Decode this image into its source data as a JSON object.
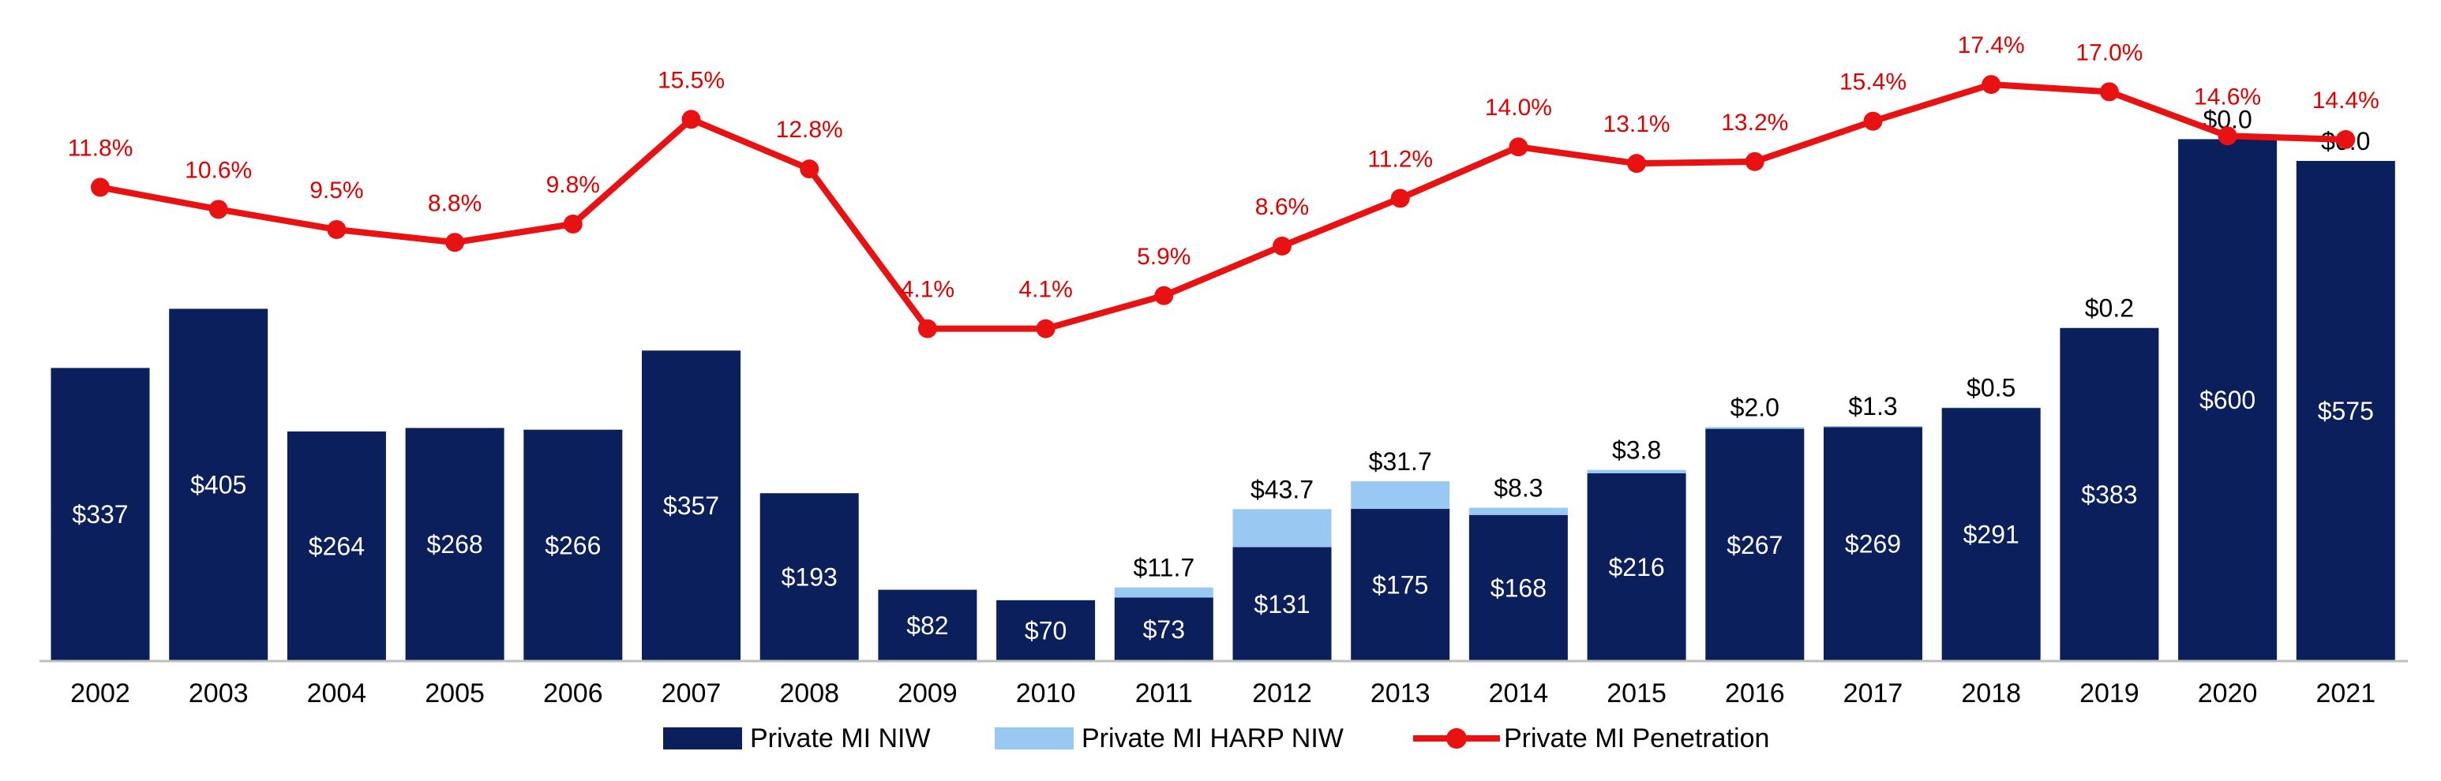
{
  "chart_data": {
    "type": "bar",
    "categories": [
      "2002",
      "2003",
      "2004",
      "2005",
      "2006",
      "2007",
      "2008",
      "2009",
      "2010",
      "2011",
      "2012",
      "2013",
      "2014",
      "2015",
      "2016",
      "2017",
      "2018",
      "2019",
      "2020",
      "2021"
    ],
    "series": [
      {
        "name": "Private MI NIW",
        "values": [
          337,
          405,
          264,
          268,
          266,
          357,
          193,
          82,
          70,
          73,
          131,
          175,
          168,
          216,
          267,
          269,
          291,
          383,
          600,
          575
        ],
        "labels": [
          "$337",
          "$405",
          "$264",
          "$268",
          "$266",
          "$357",
          "$193",
          "$82",
          "$70",
          "$73",
          "$131",
          "$175",
          "$168",
          "$216",
          "$267",
          "$269",
          "$291",
          "$383",
          "$600",
          "$575"
        ]
      },
      {
        "name": "Private MI HARP NIW",
        "values": [
          0,
          0,
          0,
          0,
          0,
          0,
          0,
          0,
          0,
          11.7,
          43.7,
          31.7,
          8.3,
          3.8,
          2.0,
          1.3,
          0.5,
          0.2,
          0.0,
          0.0
        ],
        "labels": [
          "",
          "",
          "",
          "",
          "",
          "",
          "",
          "",
          "",
          "$11.7",
          "$43.7",
          "$31.7",
          "$8.3",
          "$3.8",
          "$2.0",
          "$1.3",
          "$0.5",
          "$0.2",
          "$0.0",
          "$0.0"
        ]
      },
      {
        "name": "Private MI Penetration",
        "values": [
          11.8,
          10.6,
          9.5,
          8.8,
          9.8,
          15.5,
          12.8,
          4.1,
          4.1,
          5.9,
          8.6,
          11.2,
          14.0,
          13.1,
          13.2,
          15.4,
          17.4,
          17.0,
          14.6,
          14.4
        ],
        "labels": [
          "11.8%",
          "10.6%",
          "9.5%",
          "8.8%",
          "9.8%",
          "15.5%",
          "12.8%",
          "4.1%",
          "4.1%",
          "5.9%",
          "8.6%",
          "11.2%",
          "14.0%",
          "13.1%",
          "13.2%",
          "15.4%",
          "17.4%",
          "17.0%",
          "14.6%",
          "14.4%"
        ]
      }
    ],
    "bar_axis": [
      0,
      760
    ],
    "line_axis": [
      -14,
      22
    ],
    "legend_position": "bottom",
    "colors": {
      "niw": "#0b1f5c",
      "harp": "#99c9f2",
      "penetration": "#e81212",
      "axis": "#bfbfbf"
    }
  }
}
